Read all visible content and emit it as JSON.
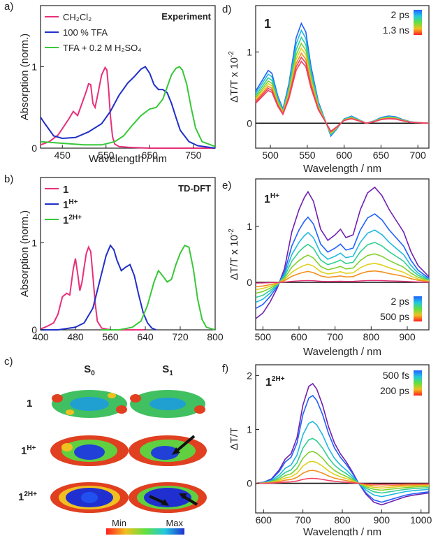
{
  "colors": {
    "ch2cl2": "#e8307a",
    "tfa": "#2030c8",
    "tfa_h2so4": "#38c838",
    "neutral": "#e8307a",
    "mono": "#2030c8",
    "di": "#38c838",
    "purple": "#7020b0",
    "baseline": "#111111"
  },
  "chart_data": [
    {
      "panel": "a)",
      "type": "line",
      "annotation": "Experiment",
      "xlabel": "Wavelength / nm",
      "ylabel": "Absorption (norm.)",
      "xlim": [
        400,
        800
      ],
      "ylim": [
        0,
        1.75
      ],
      "xticks": [
        450,
        550,
        650,
        750
      ],
      "yticks": [
        0,
        1
      ],
      "legend_position": "top-left",
      "series": [
        {
          "name": "CH₂Cl₂",
          "color": "ch2cl2",
          "x": [
            400,
            420,
            440,
            455,
            465,
            475,
            485,
            495,
            505,
            510,
            515,
            520,
            525,
            532,
            540,
            548,
            552,
            556,
            560,
            565,
            570,
            580,
            600,
            650,
            700,
            800
          ],
          "y": [
            0.04,
            0.08,
            0.16,
            0.28,
            0.36,
            0.45,
            0.4,
            0.55,
            0.7,
            0.79,
            0.78,
            0.55,
            0.5,
            0.68,
            0.9,
            0.99,
            0.96,
            0.72,
            0.4,
            0.14,
            0.05,
            0.02,
            0.01,
            0.0,
            0.0,
            0.0
          ]
        },
        {
          "name": "100 % TFA",
          "color": "tfa",
          "x": [
            400,
            410,
            430,
            450,
            480,
            510,
            540,
            560,
            580,
            600,
            615,
            630,
            640,
            650,
            660,
            670,
            680,
            690,
            700,
            710,
            720,
            740,
            760,
            800
          ],
          "y": [
            0.38,
            0.3,
            0.15,
            0.12,
            0.13,
            0.2,
            0.3,
            0.45,
            0.65,
            0.8,
            0.88,
            0.97,
            1.0,
            0.92,
            0.78,
            0.72,
            0.72,
            0.68,
            0.55,
            0.38,
            0.22,
            0.08,
            0.03,
            0.0
          ]
        },
        {
          "name": "TFA + 0.2 M H₂SO₄",
          "color": "tfa_h2so4",
          "x": [
            400,
            450,
            500,
            540,
            570,
            590,
            610,
            630,
            650,
            665,
            680,
            690,
            700,
            710,
            718,
            725,
            735,
            745,
            755,
            770,
            800
          ],
          "y": [
            0.08,
            0.06,
            0.04,
            0.04,
            0.08,
            0.15,
            0.28,
            0.4,
            0.48,
            0.5,
            0.6,
            0.75,
            0.9,
            0.98,
            1.0,
            0.96,
            0.78,
            0.5,
            0.25,
            0.08,
            0.02
          ]
        }
      ]
    },
    {
      "panel": "b)",
      "type": "line",
      "annotation": "TD-DFT",
      "xlabel": "",
      "ylabel": "Absorption (norm.)",
      "xlim": [
        400,
        800
      ],
      "ylim": [
        0,
        1.75
      ],
      "xticks": [
        400,
        480,
        560,
        640,
        720,
        800
      ],
      "yticks": [
        0,
        1
      ],
      "legend_position": "top-left",
      "series": [
        {
          "name": "1",
          "sup": "",
          "color": "neutral",
          "x": [
            400,
            415,
            430,
            440,
            450,
            460,
            467,
            475,
            480,
            485,
            490,
            495,
            500,
            505,
            510,
            515,
            520,
            525,
            530,
            540,
            560,
            600,
            640
          ],
          "y": [
            0.01,
            0.04,
            0.08,
            0.18,
            0.38,
            0.42,
            0.4,
            0.7,
            0.82,
            0.65,
            0.45,
            0.55,
            0.72,
            0.88,
            0.95,
            0.9,
            0.62,
            0.32,
            0.1,
            0.02,
            0.0,
            0.0,
            0.0
          ]
        },
        {
          "name": "1",
          "sup": "H+",
          "color": "mono",
          "x": [
            400,
            440,
            480,
            500,
            520,
            535,
            550,
            560,
            568,
            575,
            585,
            595,
            605,
            615,
            625,
            635,
            645,
            655,
            665
          ],
          "y": [
            0.0,
            0.0,
            0.03,
            0.08,
            0.25,
            0.55,
            0.85,
            0.97,
            0.92,
            0.8,
            0.68,
            0.72,
            0.75,
            0.62,
            0.4,
            0.2,
            0.08,
            0.02,
            0.0
          ]
        },
        {
          "name": "1",
          "sup": "2H+",
          "color": "di",
          "x": [
            540,
            580,
            610,
            630,
            645,
            660,
            670,
            680,
            690,
            700,
            710,
            720,
            730,
            740,
            750,
            760,
            770,
            780,
            800
          ],
          "y": [
            0.0,
            0.0,
            0.03,
            0.1,
            0.28,
            0.55,
            0.68,
            0.62,
            0.55,
            0.58,
            0.75,
            0.88,
            0.97,
            0.95,
            0.7,
            0.35,
            0.12,
            0.03,
            0.0
          ]
        }
      ]
    },
    {
      "panel": "d)",
      "type": "line",
      "annotation": "1",
      "annotation_sup": "",
      "xlabel": "Wavelength / nm",
      "ylabel": "ΔT/T x 10",
      "ylabel_sup": "-2",
      "xlim": [
        480,
        715
      ],
      "ylim": [
        -0.35,
        1.65
      ],
      "xticks": [
        500,
        550,
        600,
        650,
        700
      ],
      "yticks": [
        0,
        1
      ],
      "legend_labels": [
        "2 ps",
        "1.3 ns"
      ],
      "x": [
        480,
        490,
        497,
        502,
        510,
        517,
        525,
        535,
        542,
        548,
        555,
        565,
        575,
        582,
        590,
        600,
        610,
        620,
        630,
        640,
        650,
        660,
        670,
        680,
        690,
        700,
        715
      ],
      "base_y": [
        0.45,
        0.62,
        0.74,
        0.7,
        0.38,
        0.2,
        0.55,
        1.2,
        1.4,
        1.28,
        0.8,
        0.3,
        0.02,
        -0.18,
        -0.08,
        0.06,
        0.1,
        0.05,
        0.0,
        0.03,
        0.08,
        0.1,
        0.09,
        0.05,
        0.02,
        0.01,
        0.0
      ],
      "scales": [
        1.0,
        0.93,
        0.86,
        0.8,
        0.75,
        0.7,
        0.66,
        0.62
      ]
    },
    {
      "panel": "e)",
      "type": "line",
      "annotation": "1",
      "annotation_sup": "H+",
      "xlabel": "Wavelength / nm",
      "ylabel": "ΔT/T x 10",
      "ylabel_sup": "-2",
      "xlim": [
        480,
        960
      ],
      "ylim": [
        -0.85,
        1.85
      ],
      "xticks": [
        500,
        600,
        700,
        800,
        900
      ],
      "yticks": [
        0,
        1
      ],
      "legend_labels": [
        "2 ps",
        "500 ps"
      ],
      "x": [
        480,
        500,
        520,
        540,
        560,
        580,
        600,
        615,
        625,
        640,
        660,
        680,
        700,
        715,
        730,
        750,
        770,
        790,
        810,
        830,
        850,
        870,
        890,
        910,
        930,
        960
      ],
      "base_y": [
        -0.65,
        -0.55,
        -0.35,
        -0.1,
        0.25,
        0.9,
        1.3,
        1.52,
        1.62,
        1.45,
        0.95,
        0.75,
        0.85,
        0.95,
        0.8,
        0.85,
        1.3,
        1.6,
        1.7,
        1.55,
        1.3,
        1.1,
        0.9,
        0.55,
        0.3,
        0.1
      ],
      "scales": [
        1.0,
        0.72,
        0.55,
        0.42,
        0.3,
        0.2,
        0.12
      ],
      "flat_line_scale": 0.02
    },
    {
      "panel": "f)",
      "type": "line",
      "annotation": "1",
      "annotation_sup": "2H+",
      "xlabel": "Wavelength / nm",
      "ylabel": "ΔT/T",
      "xlim": [
        580,
        1020
      ],
      "ylim": [
        -0.55,
        2.2
      ],
      "xticks": [
        600,
        700,
        800,
        900,
        1000
      ],
      "yticks": [
        0,
        1,
        2
      ],
      "legend_labels": [
        "500 fs",
        "200 ps"
      ],
      "x": [
        580,
        600,
        620,
        640,
        655,
        670,
        685,
        700,
        715,
        725,
        735,
        750,
        765,
        780,
        795,
        810,
        825,
        840,
        860,
        880,
        900,
        920,
        940,
        960,
        980,
        1000,
        1020
      ],
      "base_y": [
        0.0,
        0.02,
        0.08,
        0.25,
        0.45,
        0.55,
        0.85,
        1.45,
        1.8,
        1.85,
        1.75,
        1.45,
        1.05,
        0.75,
        0.55,
        0.4,
        0.22,
        0.02,
        -0.2,
        -0.35,
        -0.4,
        -0.35,
        -0.3,
        -0.25,
        -0.22,
        -0.2,
        -0.18
      ],
      "scales": [
        1.0,
        0.88,
        0.62,
        0.45,
        0.32,
        0.22,
        0.13,
        0.05
      ]
    }
  ],
  "panel_c": {
    "label": "c)",
    "columns": [
      "S",
      "S"
    ],
    "column_subs": [
      "0",
      "1"
    ],
    "rows": [
      {
        "name": "1",
        "sup": ""
      },
      {
        "name": "1",
        "sup": "H+"
      },
      {
        "name": "1",
        "sup": "2H+"
      }
    ],
    "colorbar_min": "Min",
    "colorbar_max": "Max"
  }
}
